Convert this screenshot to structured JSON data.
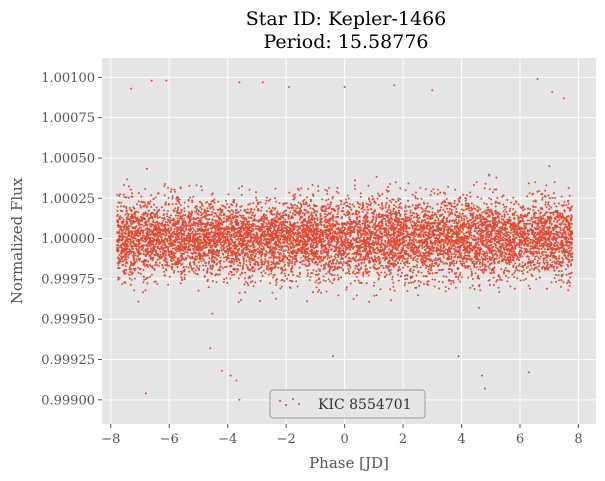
{
  "chart_data": {
    "type": "scatter",
    "title_line1": "Star ID: Kepler-1466",
    "title_line2": "Period: 15.58776",
    "xlabel": "Phase [JD]",
    "ylabel": "Normalized Flux",
    "xlim": [
      -8.3,
      8.6
    ],
    "ylim": [
      0.99885,
      1.00112
    ],
    "x_ticks": [
      -8,
      -6,
      -4,
      -2,
      0,
      2,
      4,
      6,
      8
    ],
    "x_tick_labels": [
      "−8",
      "−6",
      "−4",
      "−2",
      "0",
      "2",
      "4",
      "6",
      "8"
    ],
    "y_ticks": [
      0.999,
      0.99925,
      0.9995,
      0.99975,
      1.0,
      1.00025,
      1.0005,
      1.00075,
      1.001
    ],
    "y_tick_labels": [
      "0.99900",
      "0.99925",
      "0.99950",
      "0.99975",
      "1.00000",
      "1.00025",
      "1.00050",
      "1.00075",
      "1.00100"
    ],
    "grid": true,
    "legend_position": "lower center",
    "series": [
      {
        "name": "KIC 8554701",
        "color": "#E24A33",
        "x_range": [
          -7.79,
          7.79
        ],
        "center": 1.0,
        "scatter_sigma": 0.00012,
        "outlier_points": [
          [
            -7.2,
            0.99968
          ],
          [
            -6.8,
            0.99904
          ],
          [
            -4.6,
            0.99932
          ],
          [
            -4.2,
            0.99918
          ],
          [
            -3.9,
            0.99915
          ],
          [
            -3.7,
            0.99912
          ],
          [
            -3.6,
            0.999
          ],
          [
            -0.4,
            0.99927
          ],
          [
            3.9,
            0.99927
          ],
          [
            4.7,
            0.99915
          ],
          [
            4.8,
            0.99907
          ],
          [
            6.3,
            0.99917
          ],
          [
            -7.3,
            1.00093
          ],
          [
            -6.6,
            1.00098
          ],
          [
            -6.1,
            1.00098
          ],
          [
            -3.6,
            1.00097
          ],
          [
            -2.8,
            1.00097
          ],
          [
            -1.9,
            1.00094
          ],
          [
            0.0,
            1.00094
          ],
          [
            1.7,
            1.00095
          ],
          [
            3.0,
            1.00092
          ],
          [
            6.6,
            1.00099
          ],
          [
            7.1,
            1.00091
          ],
          [
            7.5,
            1.00087
          ]
        ]
      }
    ]
  }
}
